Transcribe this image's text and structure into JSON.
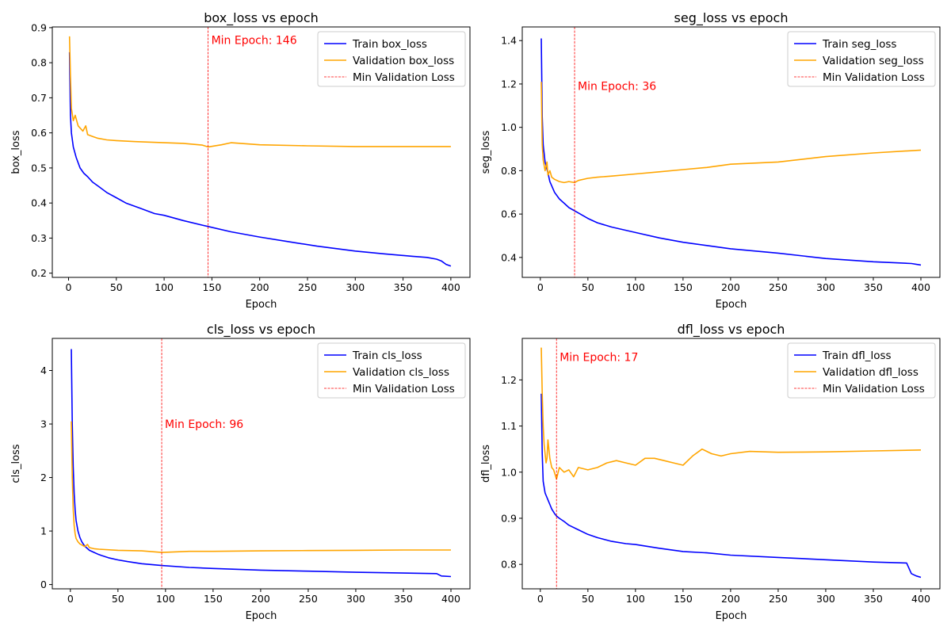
{
  "colors": {
    "train": "#0000ff",
    "validation": "#ffa500",
    "minline": "#ff0000"
  },
  "chart_data": [
    {
      "type": "line",
      "title": "box_loss vs epoch",
      "xlabel": "Epoch",
      "ylabel": "box_loss",
      "xlim": [
        -17,
        420
      ],
      "ylim": [
        0.188,
        0.902
      ],
      "xticks": [
        0,
        50,
        100,
        150,
        200,
        250,
        300,
        350,
        400
      ],
      "yticks": [
        0.2,
        0.3,
        0.4,
        0.5,
        0.6,
        0.7,
        0.8,
        0.9
      ],
      "tick_decimals": 1,
      "legend_position": "top-right",
      "min_epoch": 146,
      "min_epoch_label": "Min Epoch: 146",
      "min_line_label": "Min Validation Loss",
      "annotation_y": 0.865,
      "series": [
        {
          "name": "Train box_loss",
          "x": [
            1,
            2,
            3,
            5,
            8,
            12,
            16,
            20,
            25,
            30,
            40,
            50,
            60,
            75,
            90,
            100,
            120,
            140,
            146,
            170,
            200,
            230,
            260,
            300,
            330,
            360,
            375,
            385,
            390,
            395,
            400
          ],
          "values": [
            0.83,
            0.65,
            0.6,
            0.56,
            0.53,
            0.5,
            0.485,
            0.475,
            0.46,
            0.45,
            0.43,
            0.415,
            0.4,
            0.385,
            0.37,
            0.365,
            0.35,
            0.337,
            0.333,
            0.318,
            0.303,
            0.29,
            0.277,
            0.263,
            0.255,
            0.248,
            0.245,
            0.24,
            0.235,
            0.225,
            0.22
          ]
        },
        {
          "name": "Validation box_loss",
          "x": [
            1,
            2,
            3,
            5,
            7,
            10,
            15,
            18,
            20,
            25,
            30,
            40,
            50,
            70,
            100,
            120,
            140,
            146,
            160,
            170,
            200,
            250,
            300,
            350,
            400
          ],
          "values": [
            0.875,
            0.76,
            0.67,
            0.635,
            0.65,
            0.62,
            0.605,
            0.62,
            0.595,
            0.59,
            0.585,
            0.58,
            0.578,
            0.575,
            0.572,
            0.57,
            0.565,
            0.56,
            0.566,
            0.572,
            0.566,
            0.563,
            0.561,
            0.561,
            0.561
          ]
        }
      ]
    },
    {
      "type": "line",
      "title": "seg_loss vs epoch",
      "xlabel": "Epoch",
      "ylabel": "seg_loss",
      "xlim": [
        -19,
        420
      ],
      "ylim": [
        0.308,
        1.463
      ],
      "xticks": [
        0,
        50,
        100,
        150,
        200,
        250,
        300,
        350,
        400
      ],
      "yticks": [
        0.4,
        0.6,
        0.8,
        1.0,
        1.2,
        1.4
      ],
      "tick_decimals": 1,
      "legend_position": "top-right",
      "min_epoch": 36,
      "min_epoch_label": "Min Epoch: 36",
      "min_line_label": "Min Validation Loss",
      "annotation_y": 1.19,
      "series": [
        {
          "name": "Train seg_loss",
          "x": [
            1,
            2,
            3,
            5,
            8,
            10,
            15,
            20,
            25,
            30,
            36,
            40,
            50,
            60,
            75,
            90,
            100,
            125,
            150,
            175,
            200,
            250,
            300,
            350,
            390,
            400
          ],
          "values": [
            1.41,
            1.05,
            0.92,
            0.84,
            0.79,
            0.75,
            0.7,
            0.67,
            0.65,
            0.63,
            0.615,
            0.605,
            0.58,
            0.56,
            0.54,
            0.525,
            0.515,
            0.49,
            0.47,
            0.455,
            0.44,
            0.42,
            0.395,
            0.38,
            0.372,
            0.365
          ]
        },
        {
          "name": "Validation seg_loss",
          "x": [
            1,
            2,
            3,
            5,
            7,
            8,
            10,
            12,
            15,
            20,
            25,
            30,
            36,
            40,
            50,
            60,
            75,
            100,
            125,
            150,
            175,
            200,
            250,
            300,
            350,
            400
          ],
          "values": [
            1.21,
            0.92,
            0.85,
            0.8,
            0.84,
            0.78,
            0.8,
            0.77,
            0.76,
            0.75,
            0.745,
            0.75,
            0.745,
            0.755,
            0.765,
            0.77,
            0.775,
            0.785,
            0.795,
            0.805,
            0.815,
            0.83,
            0.84,
            0.865,
            0.882,
            0.895
          ]
        }
      ]
    },
    {
      "type": "line",
      "title": "cls_loss vs epoch",
      "xlabel": "Epoch",
      "ylabel": "cls_loss",
      "xlim": [
        -19,
        420
      ],
      "ylim": [
        -0.08,
        4.6
      ],
      "xticks": [
        0,
        50,
        100,
        150,
        200,
        250,
        300,
        350,
        400
      ],
      "yticks": [
        0,
        1,
        2,
        3,
        4
      ],
      "tick_decimals": 0,
      "legend_position": "top-right",
      "min_epoch": 96,
      "min_epoch_label": "Min Epoch: 96",
      "min_line_label": "Min Validation Loss",
      "annotation_y": 3.0,
      "series": [
        {
          "name": "Train cls_loss",
          "x": [
            1,
            2,
            3,
            4,
            5,
            6,
            8,
            10,
            12,
            15,
            20,
            25,
            30,
            40,
            50,
            60,
            75,
            96,
            125,
            150,
            200,
            250,
            300,
            350,
            385,
            390,
            400
          ],
          "values": [
            4.4,
            3.0,
            2.2,
            1.7,
            1.4,
            1.2,
            1.0,
            0.88,
            0.8,
            0.72,
            0.64,
            0.6,
            0.56,
            0.5,
            0.46,
            0.43,
            0.39,
            0.355,
            0.32,
            0.3,
            0.27,
            0.25,
            0.23,
            0.215,
            0.205,
            0.16,
            0.15
          ]
        },
        {
          "name": "Validation cls_loss",
          "x": [
            1,
            2,
            3,
            4,
            5,
            6,
            8,
            10,
            15,
            18,
            20,
            25,
            30,
            50,
            75,
            96,
            125,
            150,
            200,
            250,
            300,
            350,
            400
          ],
          "values": [
            3.05,
            2.0,
            1.4,
            1.1,
            0.95,
            0.86,
            0.8,
            0.76,
            0.71,
            0.75,
            0.69,
            0.67,
            0.66,
            0.64,
            0.63,
            0.6,
            0.62,
            0.62,
            0.63,
            0.635,
            0.64,
            0.645,
            0.645
          ]
        }
      ]
    },
    {
      "type": "line",
      "title": "dfl_loss vs epoch",
      "xlabel": "Epoch",
      "ylabel": "dfl_loss",
      "xlim": [
        -19,
        420
      ],
      "ylim": [
        0.747,
        1.29
      ],
      "xticks": [
        0,
        50,
        100,
        150,
        200,
        250,
        300,
        350,
        400
      ],
      "yticks": [
        0.8,
        0.9,
        1.0,
        1.1,
        1.2
      ],
      "tick_decimals": 1,
      "legend_position": "top-right",
      "min_epoch": 17,
      "min_epoch_label": "Min Epoch: 17",
      "min_line_label": "Min Validation Loss",
      "annotation_y": 1.25,
      "series": [
        {
          "name": "Train dfl_loss",
          "x": [
            1,
            2,
            3,
            5,
            8,
            10,
            12,
            15,
            17,
            20,
            25,
            30,
            40,
            50,
            60,
            75,
            90,
            100,
            125,
            150,
            175,
            200,
            250,
            300,
            350,
            385,
            390,
            395,
            400
          ],
          "values": [
            1.17,
            1.04,
            0.98,
            0.955,
            0.94,
            0.93,
            0.92,
            0.91,
            0.905,
            0.9,
            0.893,
            0.885,
            0.875,
            0.865,
            0.858,
            0.85,
            0.845,
            0.843,
            0.835,
            0.828,
            0.825,
            0.82,
            0.815,
            0.81,
            0.805,
            0.803,
            0.78,
            0.775,
            0.772
          ]
        },
        {
          "name": "Validation dfl_loss",
          "x": [
            1,
            2,
            3,
            4,
            5,
            6,
            7,
            8,
            10,
            12,
            14,
            17,
            20,
            25,
            30,
            35,
            40,
            50,
            60,
            70,
            80,
            90,
            100,
            110,
            120,
            130,
            140,
            150,
            160,
            170,
            180,
            190,
            200,
            220,
            250,
            300,
            350,
            400
          ],
          "values": [
            1.27,
            1.17,
            1.1,
            1.06,
            1.04,
            1.02,
            1.03,
            1.07,
            1.03,
            1.01,
            1.005,
            0.985,
            1.01,
            1.0,
            1.005,
            0.99,
            1.01,
            1.005,
            1.01,
            1.02,
            1.025,
            1.02,
            1.015,
            1.03,
            1.03,
            1.025,
            1.02,
            1.015,
            1.035,
            1.05,
            1.04,
            1.035,
            1.04,
            1.045,
            1.043,
            1.044,
            1.046,
            1.048
          ]
        }
      ]
    }
  ]
}
